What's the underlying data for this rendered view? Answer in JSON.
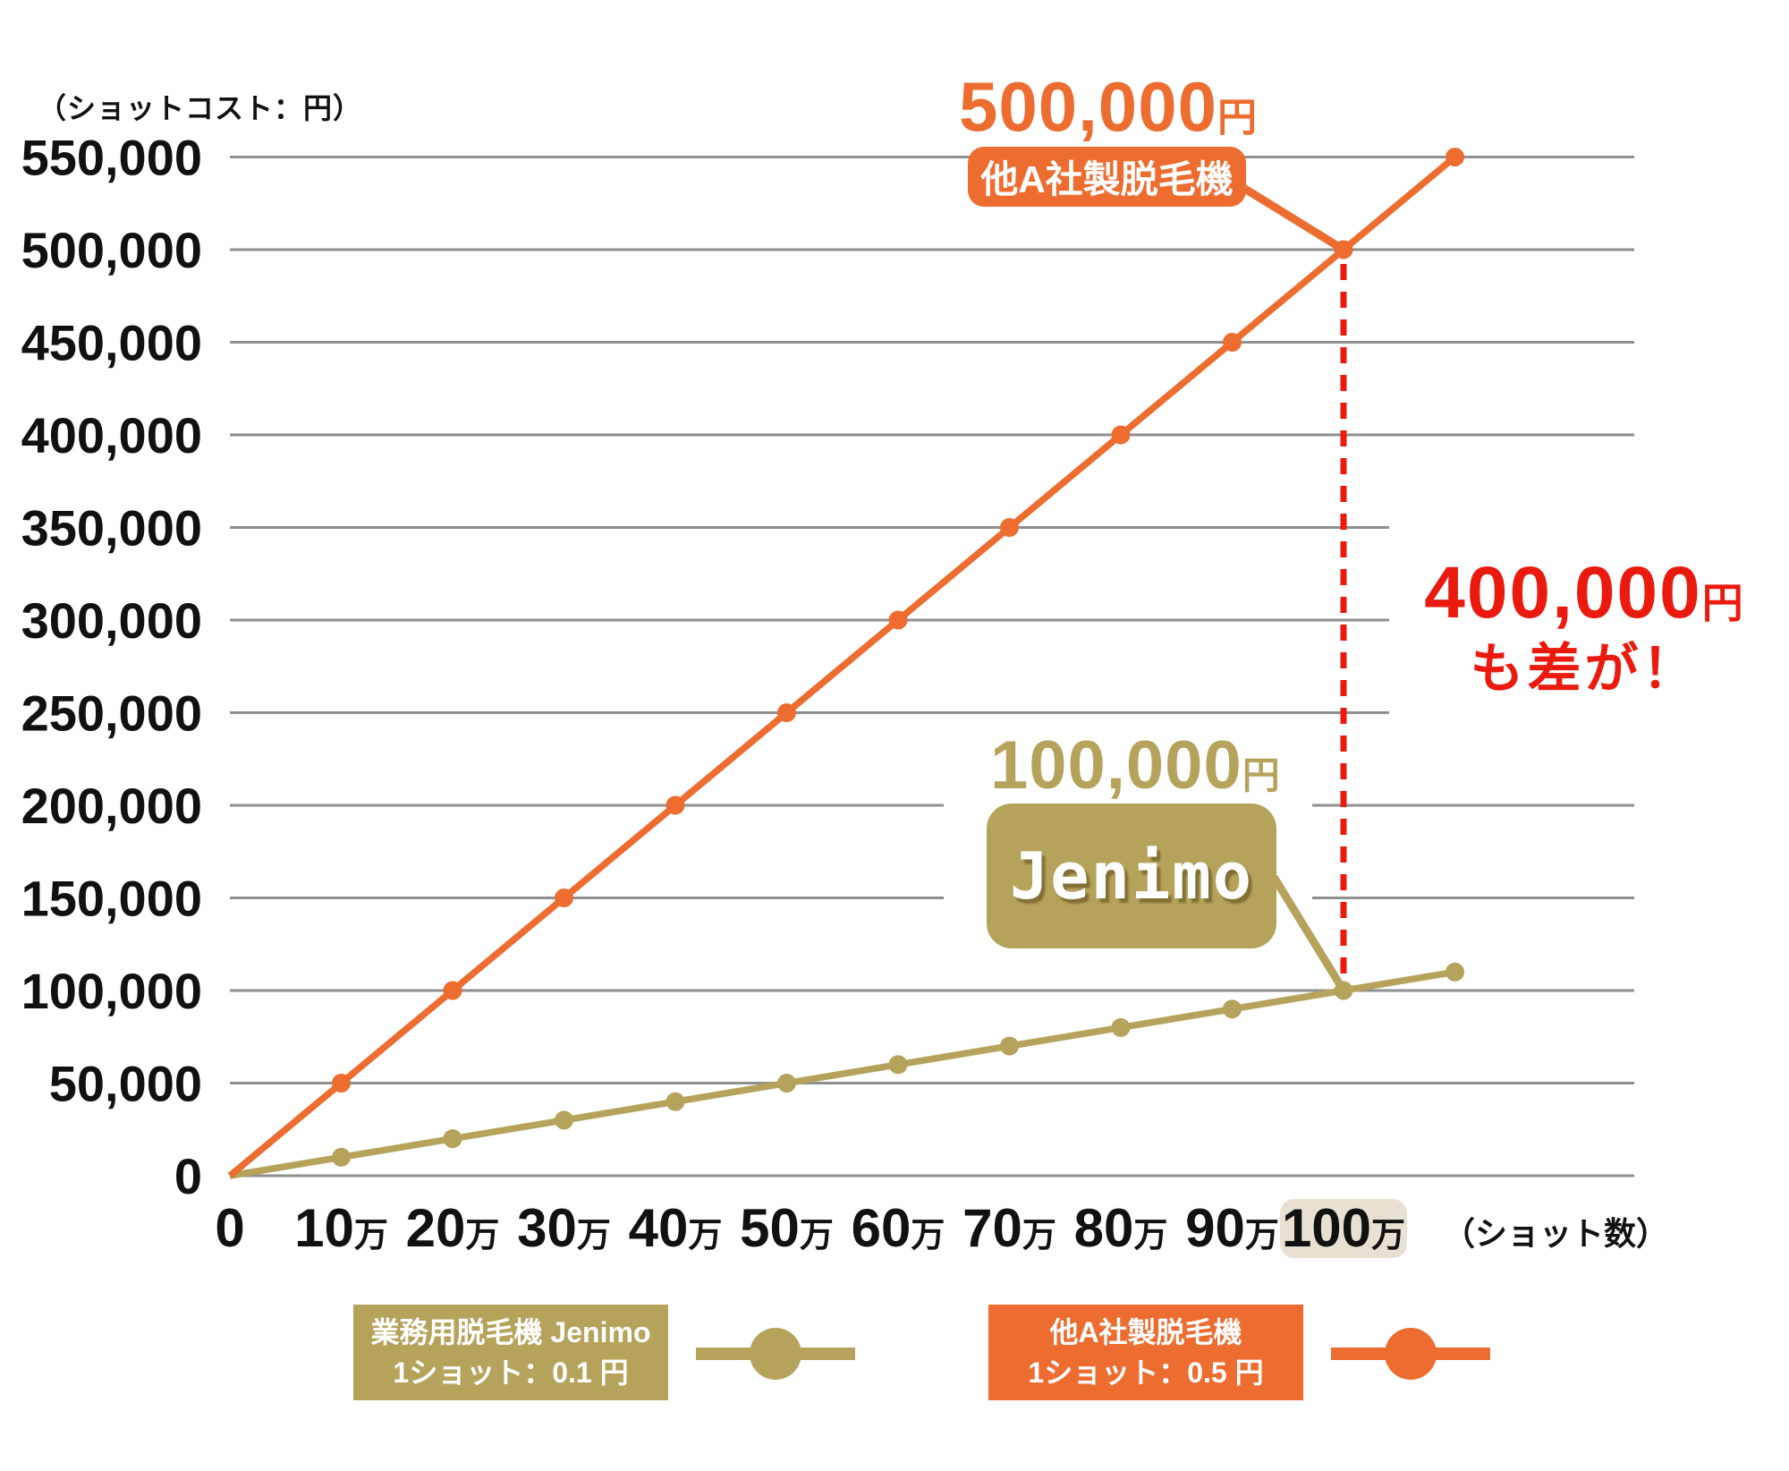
{
  "chart_data": {
    "type": "line",
    "ylabel": "（ショットコスト：円）",
    "xlabel": "（ショット数）",
    "x_man": [
      0,
      10,
      20,
      30,
      40,
      50,
      60,
      70,
      80,
      90,
      100,
      110
    ],
    "x_unit": "万",
    "series": [
      {
        "name": "業務用脱毛機 Jenimo",
        "cost_per_shot": "1ショット：0.1 円",
        "color": "#B5A35C",
        "values": [
          0,
          10000,
          20000,
          30000,
          40000,
          50000,
          60000,
          70000,
          80000,
          90000,
          100000,
          110000
        ]
      },
      {
        "name": "他A社製脱毛機",
        "cost_per_shot": "1ショット：0.5 円",
        "color": "#ED6C30",
        "values": [
          0,
          50000,
          100000,
          150000,
          200000,
          250000,
          300000,
          350000,
          400000,
          450000,
          500000,
          550000
        ]
      }
    ],
    "yticks": [
      0,
      50000,
      100000,
      150000,
      200000,
      250000,
      300000,
      350000,
      400000,
      450000,
      500000,
      550000
    ],
    "ylim": [
      0,
      550000
    ],
    "xtick_labels": [
      "0",
      "10万",
      "20万",
      "30万",
      "40万",
      "50万",
      "60万",
      "70万",
      "80万",
      "90万",
      "100万"
    ],
    "highlighted_xtick": "100万",
    "grid": "horizontal"
  },
  "annotations": {
    "company_a": {
      "amount": "500,000",
      "unit": "円",
      "label": "他A社製脱毛機",
      "at": {
        "x_man": 100,
        "cost_yen": 500000
      }
    },
    "jenimo": {
      "amount": "100,000",
      "unit": "円",
      "label": "Jenimo",
      "at": {
        "x_man": 100,
        "cost_yen": 100000
      }
    },
    "difference": {
      "amount": "400,000",
      "unit": "円",
      "note": "も差が！",
      "at_x_man": 100,
      "between_yen": [
        100000,
        500000
      ]
    }
  },
  "legend": [
    {
      "label": "業務用脱毛機 Jenimo",
      "sublabel": "1ショット：0.1 円"
    },
    {
      "label": "他A社製脱毛機",
      "sublabel": "1ショット：0.5 円"
    }
  ],
  "colors": {
    "grid": "#8F8F8F",
    "text": "#111111",
    "difference_red": "#EB1A0E",
    "xtick_highlight_bg": "#E8E1D3",
    "background": "#FFFFFF"
  }
}
